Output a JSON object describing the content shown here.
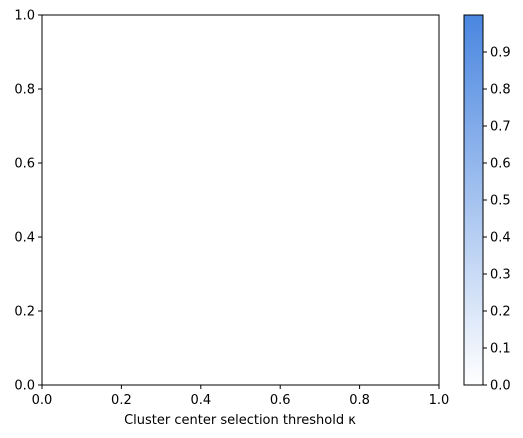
{
  "chart_data": [
    {
      "type": "scatter",
      "title": "",
      "xlabel": "Cluster center selection threshold κ",
      "ylabel": "",
      "xlim": [
        0.0,
        1.0
      ],
      "ylim": [
        0.0,
        1.0
      ],
      "x_ticks": [
        "0.0",
        "0.2",
        "0.4",
        "0.6",
        "0.8",
        "1.0"
      ],
      "y_ticks": [
        "0.0",
        "0.2",
        "0.4",
        "0.6",
        "0.8",
        "1.0"
      ],
      "series": [],
      "grid": false,
      "colorbar": {
        "range": [
          0.0,
          1.0
        ],
        "ticks": [
          "0.0",
          "0.1",
          "0.2",
          "0.3",
          "0.4",
          "0.5",
          "0.6",
          "0.7",
          "0.8",
          "0.9"
        ],
        "tick_values": [
          0.0,
          0.1,
          0.2,
          0.3,
          0.4,
          0.5,
          0.6,
          0.7,
          0.8,
          0.9
        ],
        "color_low": "#ffffff",
        "color_high": "#4a86e0"
      }
    }
  ]
}
